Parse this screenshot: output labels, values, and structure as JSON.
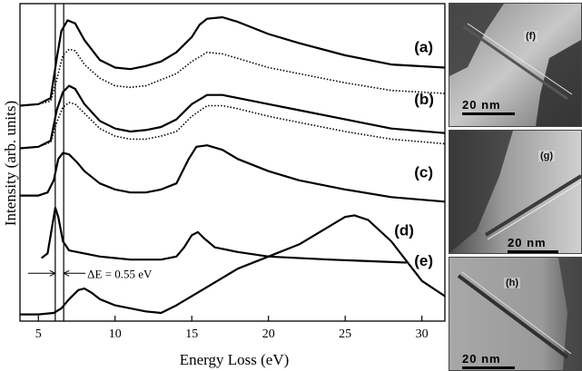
{
  "chart_data": {
    "type": "line",
    "xlabel": "Energy Loss (eV)",
    "ylabel": "Intensity (arb. units)",
    "xlim": [
      3.8,
      31.5
    ],
    "xticks": [
      "5",
      "10",
      "15",
      "20",
      "25",
      "30"
    ],
    "xtick_values": [
      5,
      10,
      15,
      20,
      25,
      30
    ],
    "ylim": [
      0,
      1
    ],
    "grid": false,
    "series": [
      {
        "label": "(a)",
        "style": "solid",
        "x": [
          3.8,
          5,
          5.8,
          6.2,
          6.5,
          6.9,
          7.4,
          8,
          9,
          10,
          11,
          12,
          13,
          14,
          15,
          15.5,
          16,
          17,
          18,
          20,
          22,
          25,
          28,
          31.5
        ],
        "y": [
          0.695,
          0.7,
          0.72,
          0.85,
          0.94,
          0.975,
          0.965,
          0.91,
          0.845,
          0.82,
          0.815,
          0.825,
          0.84,
          0.87,
          0.92,
          0.96,
          0.98,
          0.985,
          0.97,
          0.93,
          0.9,
          0.86,
          0.83,
          0.82
        ]
      },
      {
        "label": "(a)",
        "style": "dotted",
        "x": [
          3.8,
          5,
          5.8,
          6.2,
          6.6,
          7,
          7.4,
          8,
          9,
          10,
          11,
          12,
          13,
          14,
          15,
          16,
          17,
          18,
          20,
          22,
          25,
          28,
          31.5
        ],
        "y": [
          0.695,
          0.7,
          0.71,
          0.78,
          0.86,
          0.88,
          0.875,
          0.83,
          0.785,
          0.76,
          0.755,
          0.76,
          0.78,
          0.8,
          0.84,
          0.87,
          0.865,
          0.85,
          0.82,
          0.8,
          0.77,
          0.745,
          0.735
        ]
      },
      {
        "label": "(b)",
        "style": "solid",
        "x": [
          3.8,
          5,
          5.8,
          6.2,
          6.6,
          7,
          7.4,
          8,
          9,
          10,
          11,
          12,
          13,
          14,
          15,
          16,
          17,
          18,
          20,
          22,
          25,
          28,
          31.5
        ],
        "y": [
          0.555,
          0.56,
          0.58,
          0.68,
          0.74,
          0.76,
          0.75,
          0.7,
          0.645,
          0.62,
          0.61,
          0.615,
          0.625,
          0.65,
          0.7,
          0.73,
          0.73,
          0.72,
          0.7,
          0.68,
          0.65,
          0.62,
          0.605
        ]
      },
      {
        "label": "(b)",
        "style": "dotted",
        "x": [
          3.8,
          5,
          5.8,
          6.2,
          6.6,
          7,
          7.4,
          8,
          9,
          10,
          11,
          12,
          13,
          14,
          15,
          16,
          17,
          18,
          20,
          22,
          25,
          28,
          31.5
        ],
        "y": [
          0.555,
          0.56,
          0.575,
          0.64,
          0.69,
          0.705,
          0.7,
          0.67,
          0.62,
          0.595,
          0.585,
          0.585,
          0.595,
          0.61,
          0.66,
          0.695,
          0.695,
          0.685,
          0.66,
          0.64,
          0.61,
          0.585,
          0.57
        ]
      },
      {
        "label": "(c)",
        "style": "solid",
        "x": [
          3.8,
          5,
          5.6,
          6,
          6.3,
          6.6,
          7,
          7.5,
          8,
          9,
          10,
          11,
          12,
          13,
          14,
          14.8,
          15.3,
          16,
          17,
          18,
          20,
          22,
          25,
          28,
          31.5
        ],
        "y": [
          0.4,
          0.4,
          0.41,
          0.45,
          0.52,
          0.54,
          0.535,
          0.51,
          0.48,
          0.44,
          0.42,
          0.41,
          0.41,
          0.42,
          0.44,
          0.52,
          0.56,
          0.565,
          0.55,
          0.52,
          0.48,
          0.45,
          0.42,
          0.395,
          0.38
        ]
      },
      {
        "label": "(d)",
        "style": "solid",
        "x": [
          5.2,
          5.6,
          5.9,
          6.1,
          6.3,
          6.6,
          7,
          8,
          9,
          10,
          11,
          12,
          13,
          14,
          14.5,
          15,
          15.4,
          15.8,
          16.5,
          18,
          20,
          24,
          29
        ],
        "y": [
          0.195,
          0.21,
          0.3,
          0.36,
          0.33,
          0.25,
          0.22,
          0.21,
          0.2,
          0.195,
          0.19,
          0.19,
          0.19,
          0.2,
          0.23,
          0.27,
          0.28,
          0.26,
          0.23,
          0.215,
          0.2,
          0.19,
          0.18
        ]
      },
      {
        "label": "(e)",
        "style": "solid",
        "x": [
          3.8,
          5,
          6,
          6.5,
          7,
          7.6,
          8,
          8.5,
          9,
          10,
          11,
          12,
          13,
          14,
          16,
          18,
          20,
          22,
          24,
          25,
          25.6,
          26.5,
          28,
          30,
          31.5
        ],
        "y": [
          0.01,
          0.01,
          0.015,
          0.03,
          0.06,
          0.09,
          0.095,
          0.08,
          0.06,
          0.04,
          0.03,
          0.02,
          0.015,
          0.04,
          0.1,
          0.16,
          0.2,
          0.24,
          0.3,
          0.33,
          0.335,
          0.32,
          0.25,
          0.12,
          0.07
        ]
      }
    ],
    "curve_labels": [
      {
        "text": "(a)",
        "x": 29.5,
        "y": 0.87
      },
      {
        "text": "(b)",
        "x": 29.5,
        "y": 0.7
      },
      {
        "text": "(c)",
        "x": 29.5,
        "y": 0.46
      },
      {
        "text": "(d)",
        "x": 28.2,
        "y": 0.27
      },
      {
        "text": "(e)",
        "x": 29.5,
        "y": 0.17
      }
    ],
    "annotation": {
      "text": "ΔE = 0.55 eV",
      "x1": 6.1,
      "x2": 6.65,
      "y": 0.145
    },
    "vertical_lines": [
      6.1,
      6.65
    ]
  },
  "micrographs": [
    {
      "label": "(f)",
      "scale": "20 nm"
    },
    {
      "label": "(g)",
      "scale": "20 nm"
    },
    {
      "label": "(h)",
      "scale": "20 nm"
    }
  ],
  "colors": {
    "line": "#000000",
    "background": "#ffffff"
  }
}
